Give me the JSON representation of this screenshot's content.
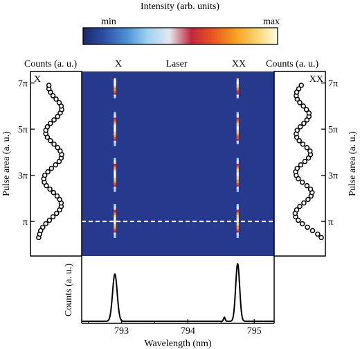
{
  "colorbar": {
    "title": "Intensity (arb. units)",
    "min_label": "min",
    "max_label": "max",
    "colors": [
      "#1a2a6c",
      "#2e4fa3",
      "#4a8fd4",
      "#9fd3ef",
      "#e6e6f0",
      "#c0283c",
      "#e8551e",
      "#f59d1c",
      "#f7d36a",
      "#fffbe6"
    ]
  },
  "map": {
    "background": "#27398c",
    "top_labels": {
      "x": "X",
      "laser": "Laser",
      "xx": "XX"
    }
  },
  "left_panel": {
    "axis_label": "Counts (a. u.)",
    "corner_label": "X"
  },
  "right_panel": {
    "axis_label": "Counts (a. u.)",
    "corner_label": "XX"
  },
  "chart_data": [
    {
      "type": "heatmap",
      "name": "pulse-area-wavelength-map",
      "xlabel": "Wavelength (nm)",
      "ylabel": "Pulse area (a. u.)",
      "xlim": [
        792.4,
        795.3
      ],
      "ylim": [
        -0.5,
        7.5
      ],
      "yticks": [
        1,
        3,
        5,
        7
      ],
      "ytick_labels": [
        "π",
        "3π",
        "5π",
        "7π"
      ],
      "lines": [
        {
          "label": "X",
          "wavelength": 792.9
        },
        {
          "label": "XX",
          "wavelength": 794.75
        }
      ],
      "reference_line": {
        "pulse_area": 1.0,
        "style": "dashed"
      },
      "laser_position": 793.8
    },
    {
      "type": "line",
      "name": "pulse-area-dependence-X",
      "xlabel": "Counts (a. u.)",
      "ylabel": "Pulse area (a. u.)",
      "x": [
        0.16,
        0.18,
        0.2,
        0.24,
        0.3,
        0.37,
        0.44,
        0.51,
        0.57,
        0.6,
        0.6,
        0.57,
        0.52,
        0.45,
        0.38,
        0.31,
        0.27,
        0.26,
        0.28,
        0.34,
        0.41,
        0.49,
        0.56,
        0.6,
        0.61,
        0.58,
        0.53,
        0.46,
        0.39,
        0.33,
        0.3,
        0.3,
        0.33,
        0.39,
        0.46,
        0.53,
        0.58,
        0.61,
        0.6,
        0.56,
        0.5,
        0.44,
        0.39,
        0.36,
        0.36
      ],
      "y": [
        0.3,
        0.45,
        0.6,
        0.75,
        0.9,
        1.05,
        1.2,
        1.35,
        1.5,
        1.65,
        1.8,
        1.95,
        2.1,
        2.25,
        2.4,
        2.55,
        2.7,
        2.85,
        3.0,
        3.15,
        3.3,
        3.45,
        3.6,
        3.75,
        3.9,
        4.05,
        4.2,
        4.35,
        4.5,
        4.65,
        4.8,
        4.95,
        5.1,
        5.25,
        5.4,
        5.55,
        5.7,
        5.85,
        6.0,
        6.15,
        6.3,
        6.45,
        6.6,
        6.75,
        6.9
      ],
      "xlim": [
        0,
        1
      ],
      "ylim": [
        -0.5,
        7.5
      ],
      "marker": "open-circle"
    },
    {
      "type": "line",
      "name": "pulse-area-dependence-XX",
      "xlabel": "Counts (a. u.)",
      "ylabel": "Pulse area (a. u.)",
      "x": [
        0.92,
        0.85,
        0.75,
        0.65,
        0.55,
        0.47,
        0.42,
        0.41,
        0.44,
        0.5,
        0.58,
        0.66,
        0.72,
        0.74,
        0.71,
        0.64,
        0.55,
        0.47,
        0.43,
        0.42,
        0.45,
        0.52,
        0.6,
        0.67,
        0.71,
        0.7,
        0.64,
        0.56,
        0.49,
        0.44,
        0.43,
        0.45,
        0.51,
        0.58,
        0.64,
        0.68,
        0.68,
        0.63,
        0.57,
        0.5,
        0.45,
        0.43,
        0.44,
        0.48,
        0.53
      ],
      "y": [
        0.3,
        0.45,
        0.6,
        0.75,
        0.9,
        1.05,
        1.2,
        1.35,
        1.5,
        1.65,
        1.8,
        1.95,
        2.1,
        2.25,
        2.4,
        2.55,
        2.7,
        2.85,
        3.0,
        3.15,
        3.3,
        3.45,
        3.6,
        3.75,
        3.9,
        4.05,
        4.2,
        4.35,
        4.5,
        4.65,
        4.8,
        4.95,
        5.1,
        5.25,
        5.4,
        5.55,
        5.7,
        5.85,
        6.0,
        6.15,
        6.3,
        6.45,
        6.6,
        6.75,
        6.9
      ],
      "xlim": [
        0,
        1
      ],
      "ylim": [
        -0.5,
        7.5
      ],
      "marker": "open-circle"
    },
    {
      "type": "line",
      "name": "emission-spectrum",
      "xlabel": "Wavelength (nm)",
      "ylabel": "Counts (a. u.)",
      "xlim": [
        792.4,
        795.3
      ],
      "ylim": [
        0,
        1.1
      ],
      "xticks": [
        793,
        794,
        795
      ],
      "xtick_labels": [
        "793",
        "794",
        "795"
      ],
      "peaks": [
        {
          "center": 792.9,
          "height": 0.82,
          "width": 0.035
        },
        {
          "center": 794.55,
          "height": 0.07,
          "width": 0.012
        },
        {
          "center": 794.75,
          "height": 1.0,
          "width": 0.03
        }
      ]
    }
  ]
}
